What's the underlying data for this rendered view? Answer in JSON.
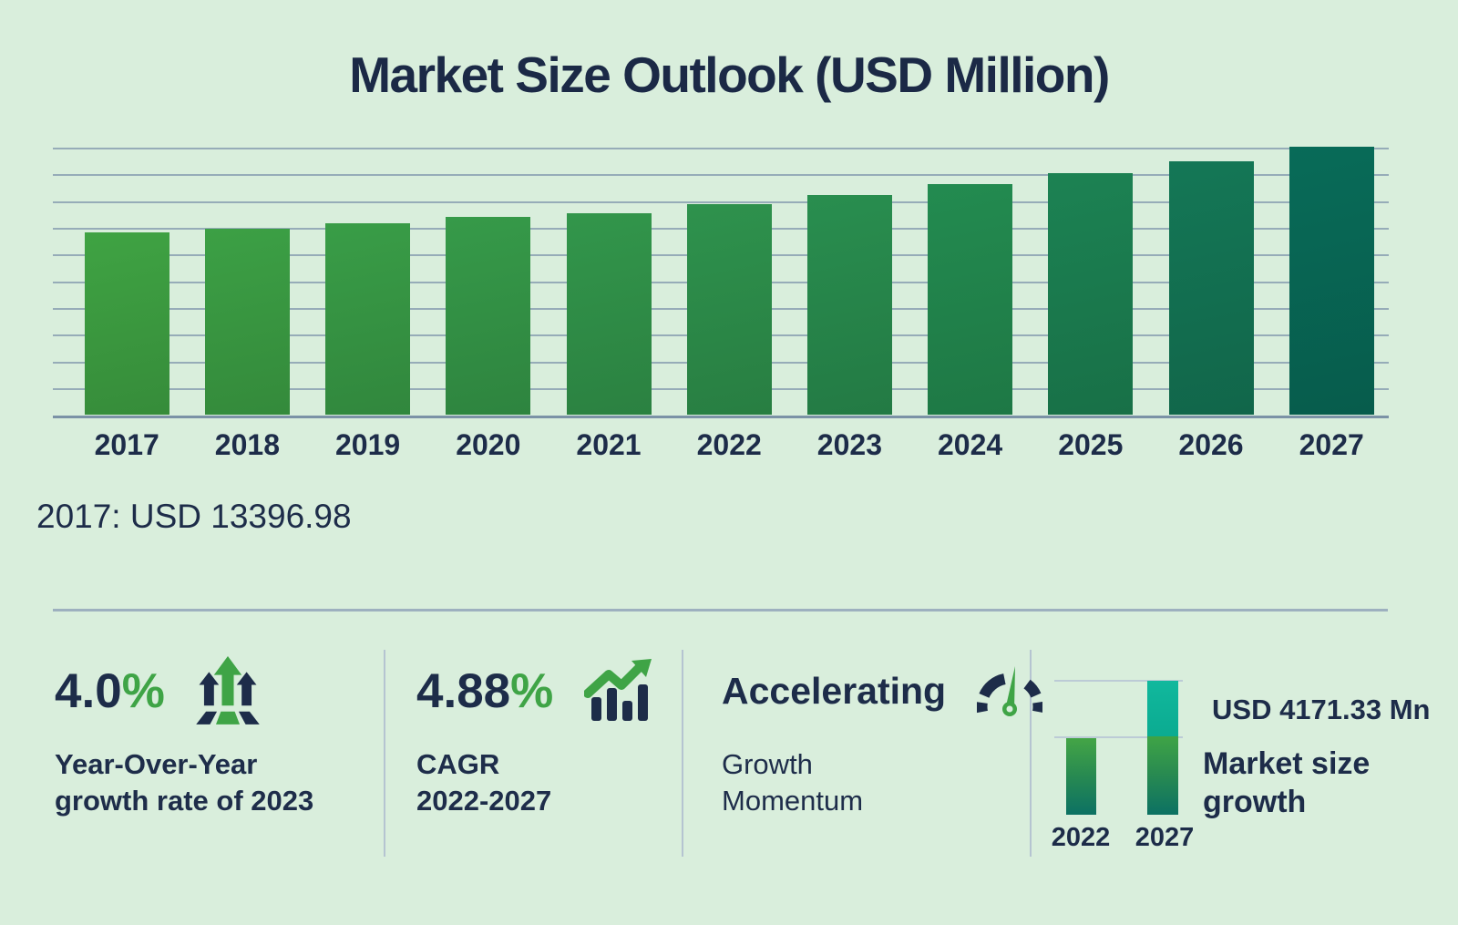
{
  "title": "Market Size Outlook (USD Million)",
  "callout": "2017: USD 13396.98",
  "chart_data": [
    {
      "type": "bar",
      "title": "Market Size Outlook (USD Million)",
      "unit": "USD Million",
      "categories": [
        "2017",
        "2018",
        "2019",
        "2020",
        "2021",
        "2022",
        "2023",
        "2024",
        "2025",
        "2026",
        "2027"
      ],
      "values": [
        13396.98,
        13650,
        14090,
        14560,
        14810,
        15508,
        16128,
        16930,
        17780,
        18600,
        19680
      ],
      "labeled_point": {
        "category": "2017",
        "label": "2017: USD 13396.98"
      },
      "xlabel": "",
      "ylabel": "",
      "ylim": [
        0,
        20000
      ],
      "grid": "horizontal",
      "legend": "none",
      "bar_colors": [
        "#3fa343",
        "#3ca045",
        "#399d47",
        "#369a49",
        "#32964b",
        "#2e924d",
        "#298e4f",
        "#238b50",
        "#1c8253",
        "#147756",
        "#086b58"
      ]
    },
    {
      "type": "bar",
      "categories": [
        "2022",
        "2027"
      ],
      "values": [
        15508,
        19680
      ],
      "growth": {
        "label": "USD 4171.33 Mn",
        "value_usd_mn": 4171.33
      },
      "caption": [
        "Market size",
        "growth"
      ],
      "segment_colors": {
        "base_green_top": "#3fa446",
        "base_green_bottom": "#0c7163",
        "growth_teal": "#0db39a"
      }
    }
  ],
  "stats": [
    {
      "value": "4.0",
      "suffix": "%",
      "icon": "growth-arrows-icon",
      "lines": [
        "Year-Over-Year",
        "growth rate of 2023"
      ]
    },
    {
      "value": "4.88",
      "suffix": "%",
      "icon": "bar-trend-icon",
      "lines": [
        "CAGR",
        "2022-2027"
      ]
    },
    {
      "value": "Accelerating",
      "suffix": "",
      "icon": "gauge-icon",
      "lines": [
        "Growth",
        "Momentum"
      ]
    }
  ],
  "colors": {
    "background": "#d9eedc",
    "text_navy": "#1d2c49",
    "accent_green": "#3fa446",
    "accent_teal": "#0db39a",
    "gridline": "#8aa0b2",
    "bar_gradient_start": "#3fa343",
    "bar_gradient_end": "#086b58"
  }
}
